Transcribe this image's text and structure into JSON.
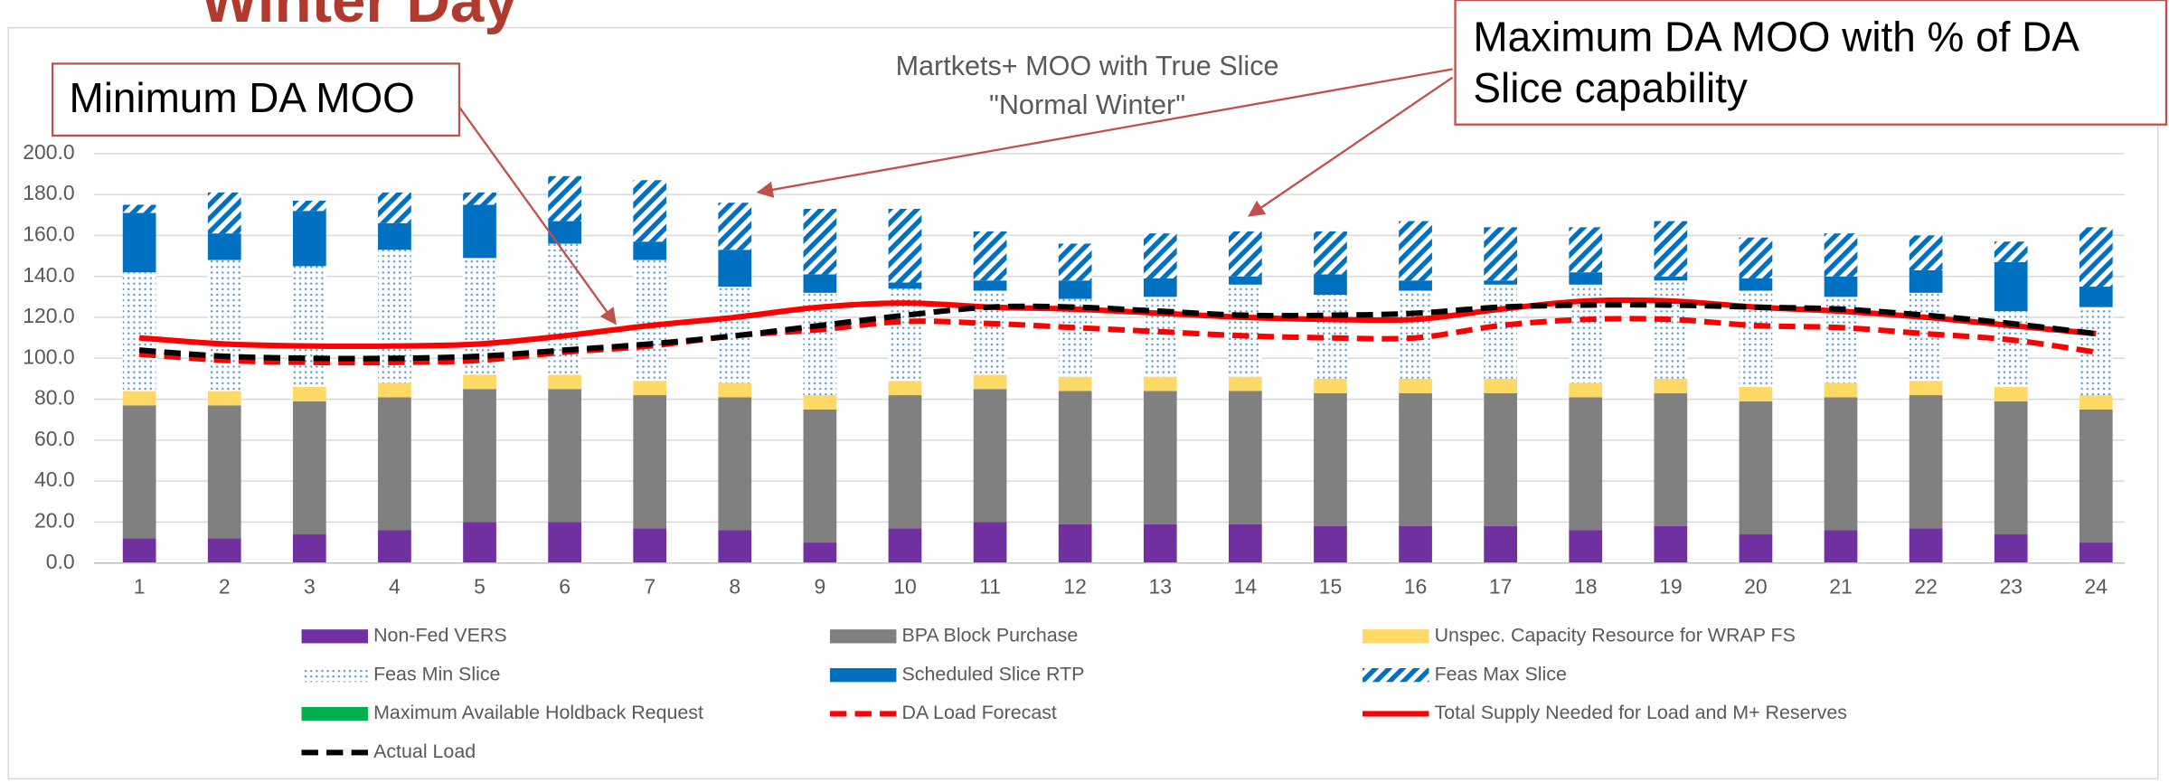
{
  "slide_title": "Winter Day",
  "chart_data": {
    "type": "bar",
    "stacked": true,
    "title": [
      "Martkets+ MOO with True Slice",
      "\"Normal Winter\""
    ],
    "annotations": [
      "Minimum DA MOO",
      [
        "Maximum DA MOO with % of DA",
        "Slice capability"
      ]
    ],
    "categories": [
      "1",
      "2",
      "3",
      "4",
      "5",
      "6",
      "7",
      "8",
      "9",
      "10",
      "11",
      "12",
      "13",
      "14",
      "15",
      "16",
      "17",
      "18",
      "19",
      "20",
      "21",
      "22",
      "23",
      "24"
    ],
    "ylim": [
      0,
      200
    ],
    "yticks": [
      {
        "value": 0,
        "label": "0.0"
      },
      {
        "value": 20,
        "label": "20.0"
      },
      {
        "value": 40,
        "label": "40.0"
      },
      {
        "value": 60,
        "label": "60.0"
      },
      {
        "value": 80,
        "label": "80.0"
      },
      {
        "value": 100,
        "label": "100.0"
      },
      {
        "value": 120,
        "label": "120.0"
      },
      {
        "value": 140,
        "label": "140.0"
      },
      {
        "value": 160,
        "label": "160.0"
      },
      {
        "value": 180,
        "label": "180.0"
      },
      {
        "value": 200,
        "label": "200.0"
      }
    ],
    "grid": true,
    "legend": "bottom",
    "series": [
      {
        "name": "Non-Fed VERS",
        "color": "#7030a0",
        "values": [
          12,
          12,
          14,
          16,
          20,
          20,
          17,
          16,
          10,
          17,
          20,
          19,
          19,
          19,
          18,
          18,
          18,
          16,
          18,
          14,
          16,
          17,
          14,
          10
        ]
      },
      {
        "name": "BPA Block Purchase",
        "color": "#808080",
        "values": [
          65,
          65,
          65,
          65,
          65,
          65,
          65,
          65,
          65,
          65,
          65,
          65,
          65,
          65,
          65,
          65,
          65,
          65,
          65,
          65,
          65,
          65,
          65,
          65
        ]
      },
      {
        "name": "Unspec. Capacity Resource for WRAP FS",
        "color": "#ffd966",
        "values": [
          7,
          7,
          7,
          7,
          7,
          7,
          7,
          7,
          7,
          7,
          7,
          7,
          7,
          7,
          7,
          7,
          7,
          7,
          7,
          7,
          7,
          7,
          7,
          7
        ]
      },
      {
        "name": "Feas Min Slice",
        "color": "#5b9bd5",
        "pattern": "dots",
        "values": [
          58,
          64,
          59,
          65,
          57,
          64,
          59,
          47,
          50,
          45,
          41,
          38,
          39,
          45,
          41,
          43,
          46,
          48,
          48,
          47,
          42,
          43,
          37,
          43
        ]
      },
      {
        "name": "Scheduled Slice RTP",
        "color": "#0070c0",
        "values": [
          29,
          13,
          27,
          13,
          26,
          11,
          9,
          18,
          9,
          3,
          5,
          9,
          9,
          4,
          10,
          5,
          2,
          6,
          2,
          6,
          10,
          11,
          24,
          10
        ]
      },
      {
        "name": "Feas Max Slice",
        "color": "#0070c0",
        "pattern": "hatch",
        "values": [
          4,
          20,
          5,
          15,
          6,
          22,
          30,
          23,
          32,
          36,
          24,
          18,
          22,
          22,
          21,
          29,
          26,
          22,
          27,
          20,
          21,
          17,
          10,
          29
        ]
      },
      {
        "name": "Maximum Available Holdback Request",
        "color": "#00b050",
        "values": [
          0,
          0,
          0,
          0,
          0,
          0,
          0,
          0,
          0,
          0,
          0,
          0,
          0,
          0,
          0,
          0,
          0,
          0,
          0,
          0,
          0,
          0,
          0,
          0
        ]
      },
      {
        "name": "DA Load Forecast",
        "type": "line",
        "dash": true,
        "color": "#ff0000",
        "values": [
          102,
          99,
          98,
          98,
          99,
          103,
          106,
          111,
          114,
          118,
          117,
          115,
          113,
          111,
          110,
          110,
          116,
          119,
          119,
          116,
          115,
          112,
          109,
          103
        ]
      },
      {
        "name": "Total Supply Needed for Load and M+ Reserves",
        "type": "line",
        "dash": false,
        "color": "#ff0000",
        "values": [
          110,
          107,
          106,
          106,
          107,
          111,
          116,
          120,
          125,
          127,
          125,
          124,
          122,
          120,
          119,
          119,
          124,
          128,
          128,
          125,
          123,
          120,
          116,
          112
        ]
      },
      {
        "name": "Actual Load",
        "type": "line",
        "dash": true,
        "color": "#000000",
        "values": [
          104,
          101,
          100,
          100,
          101,
          104,
          107,
          111,
          116,
          121,
          125,
          125,
          123,
          121,
          121,
          122,
          125,
          126,
          126,
          125,
          124,
          121,
          117,
          112
        ]
      }
    ]
  }
}
